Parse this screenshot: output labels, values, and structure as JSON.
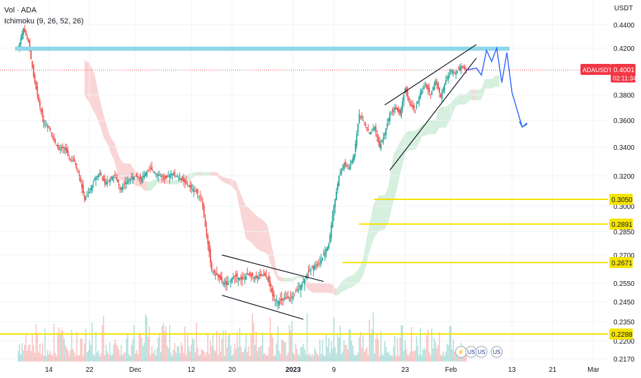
{
  "legend": {
    "volume": "Vol · ADA",
    "indicator": "Ichimoku (9, 26, 52, 26)"
  },
  "price_axis": {
    "currency": "USDT"
  },
  "chart_data": {
    "type": "candlestick",
    "symbol": "ADAUSDT",
    "current_price": {
      "label": "ADAUSDT",
      "value": "0.4001",
      "countdown": "02:11:34",
      "price": 0.4001
    },
    "y_ticks": [
      0.44,
      0.42,
      0.38,
      0.36,
      0.34,
      0.32,
      0.3,
      0.285,
      0.27,
      0.255,
      0.245,
      0.235,
      0.22,
      0.217
    ],
    "y_tick_labels": [
      "0.4400",
      "0.4200",
      "0.3800",
      "0.3600",
      "0.3400",
      "0.3200",
      "0.3000",
      "0.2850",
      "0.2700",
      "0.2550",
      "0.2450",
      "0.2350",
      "0.2200",
      "0.2170"
    ],
    "x_ticks": [
      {
        "label": "14",
        "date": "2022-11-14"
      },
      {
        "label": "22",
        "date": "2022-11-22"
      },
      {
        "label": "Dec",
        "date": "2022-12-01"
      },
      {
        "label": "12",
        "date": "2022-12-12"
      },
      {
        "label": "20",
        "date": "2022-12-20"
      },
      {
        "label": "2023",
        "date": "2023-01-01"
      },
      {
        "label": "9",
        "date": "2023-01-09"
      },
      {
        "label": "23",
        "date": "2023-01-23"
      },
      {
        "label": "Feb",
        "date": "2023-02-01"
      },
      {
        "label": "13",
        "date": "2023-02-13"
      },
      {
        "label": "21",
        "date": "2023-02-21"
      },
      {
        "label": "Mar",
        "date": "2023-03-01"
      }
    ],
    "horizontal_levels": [
      {
        "price": 0.4195,
        "label": "",
        "color": "#8fd8e8",
        "kind": "resistance-band"
      },
      {
        "price": 0.305,
        "label": "0.3050",
        "color": "#f5e400"
      },
      {
        "price": 0.2891,
        "label": "0.2891",
        "color": "#f5e400"
      },
      {
        "price": 0.2671,
        "label": "0.2671",
        "color": "#f5e400"
      },
      {
        "price": 0.2288,
        "label": "0.2288",
        "color": "#f5e400"
      }
    ],
    "path": [
      [
        "2022-11-08",
        0.42
      ],
      [
        "2022-11-09",
        0.437
      ],
      [
        "2022-11-10",
        0.425
      ],
      [
        "2022-11-11",
        0.395
      ],
      [
        "2022-11-12",
        0.375
      ],
      [
        "2022-11-13",
        0.358
      ],
      [
        "2022-11-14",
        0.355
      ],
      [
        "2022-11-15",
        0.345
      ],
      [
        "2022-11-16",
        0.338
      ],
      [
        "2022-11-17",
        0.34
      ],
      [
        "2022-11-18",
        0.332
      ],
      [
        "2022-11-19",
        0.33
      ],
      [
        "2022-11-20",
        0.32
      ],
      [
        "2022-11-21",
        0.305
      ],
      [
        "2022-11-22",
        0.31
      ],
      [
        "2022-11-23",
        0.318
      ],
      [
        "2022-11-24",
        0.322
      ],
      [
        "2022-11-25",
        0.315
      ],
      [
        "2022-11-26",
        0.318
      ],
      [
        "2022-11-27",
        0.32
      ],
      [
        "2022-11-28",
        0.312
      ],
      [
        "2022-11-29",
        0.315
      ],
      [
        "2022-11-30",
        0.318
      ],
      [
        "2022-12-01",
        0.32
      ],
      [
        "2022-12-02",
        0.318
      ],
      [
        "2022-12-03",
        0.322
      ],
      [
        "2022-12-04",
        0.325
      ],
      [
        "2022-12-05",
        0.322
      ],
      [
        "2022-12-06",
        0.32
      ],
      [
        "2022-12-07",
        0.318
      ],
      [
        "2022-12-08",
        0.322
      ],
      [
        "2022-12-09",
        0.32
      ],
      [
        "2022-12-10",
        0.318
      ],
      [
        "2022-12-11",
        0.315
      ],
      [
        "2022-12-12",
        0.312
      ],
      [
        "2022-12-13",
        0.31
      ],
      [
        "2022-12-14",
        0.305
      ],
      [
        "2022-12-15",
        0.282
      ],
      [
        "2022-12-16",
        0.262
      ],
      [
        "2022-12-17",
        0.26
      ],
      [
        "2022-12-18",
        0.256
      ],
      [
        "2022-12-19",
        0.254
      ],
      [
        "2022-12-20",
        0.258
      ],
      [
        "2022-12-21",
        0.259
      ],
      [
        "2022-12-22",
        0.257
      ],
      [
        "2022-12-23",
        0.26
      ],
      [
        "2022-12-24",
        0.259
      ],
      [
        "2022-12-25",
        0.258
      ],
      [
        "2022-12-26",
        0.26
      ],
      [
        "2022-12-27",
        0.258
      ],
      [
        "2022-12-28",
        0.248
      ],
      [
        "2022-12-29",
        0.245
      ],
      [
        "2022-12-30",
        0.246
      ],
      [
        "2022-12-31",
        0.247
      ],
      [
        "2023-01-01",
        0.248
      ],
      [
        "2023-01-02",
        0.252
      ],
      [
        "2023-01-03",
        0.256
      ],
      [
        "2023-01-04",
        0.262
      ],
      [
        "2023-01-05",
        0.265
      ],
      [
        "2023-01-06",
        0.266
      ],
      [
        "2023-01-07",
        0.27
      ],
      [
        "2023-01-08",
        0.277
      ],
      [
        "2023-01-09",
        0.3
      ],
      [
        "2023-01-10",
        0.32
      ],
      [
        "2023-01-11",
        0.328
      ],
      [
        "2023-01-12",
        0.325
      ],
      [
        "2023-01-13",
        0.335
      ],
      [
        "2023-01-14",
        0.365
      ],
      [
        "2023-01-15",
        0.358
      ],
      [
        "2023-01-16",
        0.35
      ],
      [
        "2023-01-17",
        0.355
      ],
      [
        "2023-01-18",
        0.34
      ],
      [
        "2023-01-19",
        0.35
      ],
      [
        "2023-01-20",
        0.365
      ],
      [
        "2023-01-21",
        0.37
      ],
      [
        "2023-01-22",
        0.365
      ],
      [
        "2023-01-23",
        0.385
      ],
      [
        "2023-01-24",
        0.372
      ],
      [
        "2023-01-25",
        0.368
      ],
      [
        "2023-01-26",
        0.382
      ],
      [
        "2023-01-27",
        0.388
      ],
      [
        "2023-01-28",
        0.38
      ],
      [
        "2023-01-29",
        0.392
      ],
      [
        "2023-01-30",
        0.378
      ],
      [
        "2023-01-31",
        0.392
      ],
      [
        "2023-02-01",
        0.4
      ],
      [
        "2023-02-02",
        0.398
      ],
      [
        "2023-02-03",
        0.404
      ],
      [
        "2023-02-04",
        0.4
      ]
    ],
    "trendlines": [
      [
        [
          "2022-12-18",
          0.27
        ],
        [
          "2023-01-07",
          0.256
        ]
      ],
      [
        [
          "2022-12-18",
          0.2485
        ],
        [
          "2023-01-03",
          0.2362
        ]
      ],
      [
        [
          "2023-01-19",
          0.372
        ],
        [
          "2023-02-06",
          0.423
        ]
      ],
      [
        [
          "2023-01-20",
          0.324
        ],
        [
          "2023-02-06",
          0.411
        ]
      ]
    ],
    "projection": [
      [
        "2023-02-04",
        0.4
      ],
      [
        "2023-02-06",
        0.402
      ],
      [
        "2023-02-07",
        0.396
      ],
      [
        "2023-02-08",
        0.418
      ],
      [
        "2023-02-09",
        0.408
      ],
      [
        "2023-02-10",
        0.42
      ],
      [
        "2023-02-11",
        0.39
      ],
      [
        "2023-02-12",
        0.416
      ],
      [
        "2023-02-13",
        0.382
      ],
      [
        "2023-02-15",
        0.355
      ],
      [
        "2023-02-16",
        0.358
      ]
    ],
    "event_icons": [
      {
        "label": "⚡",
        "date": "2023-02-03"
      },
      {
        "label": "US",
        "date": "2023-02-05"
      },
      {
        "label": "US",
        "date": "2023-02-07"
      },
      {
        "label": "US",
        "date": "2023-02-10"
      }
    ],
    "colors": {
      "up": "#26a69a",
      "down": "#ef5350",
      "projection": "#2962ff",
      "level": "#f5e400",
      "band": "#8fd8e8",
      "price_tag": "#f23645",
      "cloud_red": "#f8c5c5",
      "cloud_green": "#c7ead2"
    }
  }
}
